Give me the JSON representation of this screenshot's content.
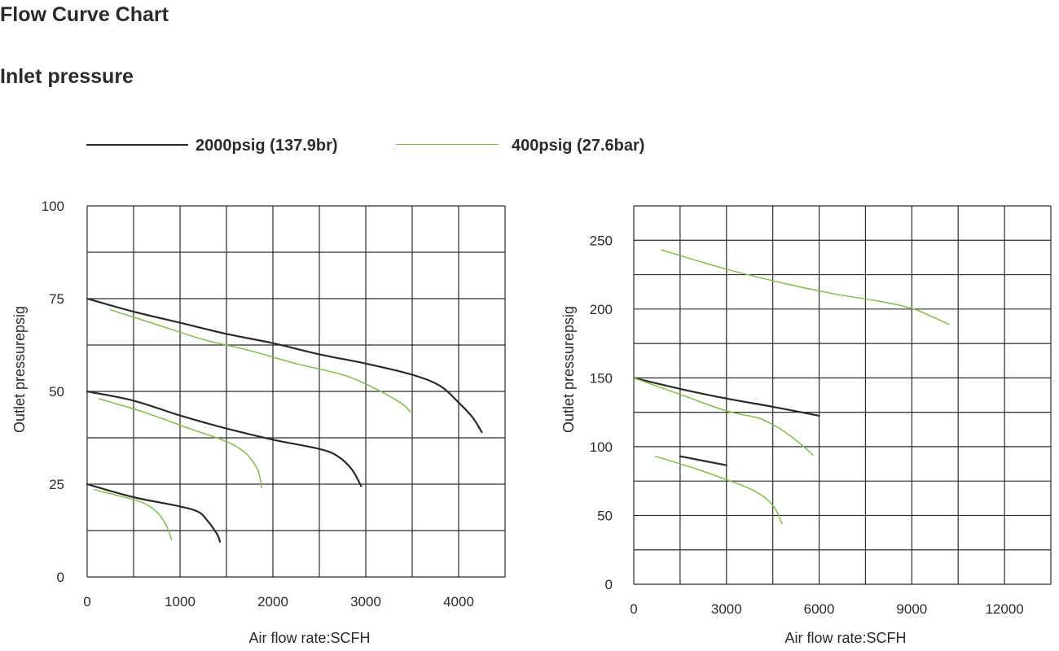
{
  "page": {
    "title": "Flow Curve Chart",
    "subtitle": "Inlet pressure"
  },
  "legend": {
    "items": [
      {
        "label": "2000psig (137.9br)",
        "color": "#2a2a2a"
      },
      {
        "label": "400psig (27.6bar)",
        "color": "#7dc242"
      }
    ]
  },
  "colors": {
    "grid": "#2b2b2b",
    "series_2000": "#2a2a2a",
    "series_400": "#7dc242"
  },
  "chart_data": [
    {
      "type": "line",
      "xlabel": "Air flow rate:SCFH",
      "ylabel": "Outlet pressurepsig",
      "xlim": [
        0,
        4500
      ],
      "ylim": [
        0,
        100
      ],
      "x_ticks": [
        0,
        1000,
        2000,
        3000,
        4000
      ],
      "y_ticks": [
        0,
        25,
        50,
        75,
        100
      ],
      "grid": true,
      "series": [
        {
          "name": "2000psig (137.9br)",
          "color": "#2a2a2a",
          "points": [
            [
              0,
              75
            ],
            [
              500,
              71.5
            ],
            [
              1000,
              68.5
            ],
            [
              1500,
              65.5
            ],
            [
              2000,
              63
            ],
            [
              2500,
              60
            ],
            [
              3000,
              57.5
            ],
            [
              3500,
              54.5
            ],
            [
              3800,
              51.5
            ],
            [
              4000,
              47
            ],
            [
              4150,
              43
            ],
            [
              4250,
              39
            ]
          ]
        },
        {
          "name": "2000psig (137.9br)",
          "color": "#2a2a2a",
          "points": [
            [
              0,
              50
            ],
            [
              500,
              47.5
            ],
            [
              1000,
              43.5
            ],
            [
              1500,
              40
            ],
            [
              2000,
              37
            ],
            [
              2500,
              34.5
            ],
            [
              2700,
              32.5
            ],
            [
              2850,
              29
            ],
            [
              2950,
              24.5
            ]
          ]
        },
        {
          "name": "2000psig (137.9br)",
          "color": "#2a2a2a",
          "points": [
            [
              0,
              25
            ],
            [
              500,
              21.5
            ],
            [
              1000,
              19
            ],
            [
              1200,
              17.5
            ],
            [
              1300,
              15
            ],
            [
              1400,
              11.5
            ],
            [
              1430,
              9.5
            ]
          ]
        },
        {
          "name": "400psig (27.6bar)",
          "color": "#7dc242",
          "points": [
            [
              250,
              72
            ],
            [
              750,
              68
            ],
            [
              1250,
              64
            ],
            [
              1750,
              61
            ],
            [
              2250,
              57.5
            ],
            [
              2750,
              54.5
            ],
            [
              3000,
              52
            ],
            [
              3200,
              49.5
            ],
            [
              3400,
              46.5
            ],
            [
              3480,
              44.5
            ]
          ]
        },
        {
          "name": "400psig (27.6bar)",
          "color": "#7dc242",
          "points": [
            [
              130,
              48
            ],
            [
              600,
              44.5
            ],
            [
              1100,
              40
            ],
            [
              1500,
              36.5
            ],
            [
              1700,
              33.5
            ],
            [
              1800,
              30.5
            ],
            [
              1850,
              28
            ],
            [
              1880,
              24
            ]
          ]
        },
        {
          "name": "400psig (27.6bar)",
          "color": "#7dc242",
          "points": [
            [
              80,
              23.5
            ],
            [
              400,
              21.5
            ],
            [
              600,
              20
            ],
            [
              750,
              17.5
            ],
            [
              850,
              14
            ],
            [
              910,
              10
            ]
          ]
        }
      ]
    },
    {
      "type": "line",
      "xlabel": "Air flow rate:SCFH",
      "ylabel": "Outlet pressurepsig",
      "xlim": [
        0,
        13500
      ],
      "ylim": [
        0,
        275
      ],
      "x_ticks": [
        0,
        3000,
        6000,
        9000,
        12000
      ],
      "y_ticks": [
        0,
        50,
        100,
        150,
        200,
        250
      ],
      "grid": true,
      "series": [
        {
          "name": "2000psig (137.9br)",
          "color": "#2a2a2a",
          "points": [
            [
              0,
              150
            ],
            [
              1500,
              142
            ],
            [
              3000,
              135
            ],
            [
              4500,
              129
            ],
            [
              6000,
              122.5
            ]
          ]
        },
        {
          "name": "2000psig (137.9br)",
          "color": "#2a2a2a",
          "points": [
            [
              1500,
              93
            ],
            [
              3000,
              86.5
            ]
          ]
        },
        {
          "name": "400psig (27.6bar)",
          "color": "#7dc242",
          "points": [
            [
              900,
              243
            ],
            [
              3000,
              229
            ],
            [
              5000,
              218
            ],
            [
              6500,
              211
            ],
            [
              8000,
              205.5
            ],
            [
              9000,
              200.5
            ],
            [
              9600,
              195
            ],
            [
              10200,
              189
            ]
          ]
        },
        {
          "name": "400psig (27.6bar)",
          "color": "#7dc242",
          "points": [
            [
              0,
              150
            ],
            [
              1500,
              138
            ],
            [
              3000,
              126
            ],
            [
              4000,
              121
            ],
            [
              4500,
              116
            ],
            [
              5000,
              109
            ],
            [
              5400,
              102
            ],
            [
              5800,
              94
            ]
          ]
        },
        {
          "name": "400psig (27.6bar)",
          "color": "#7dc242",
          "points": [
            [
              700,
              93
            ],
            [
              2000,
              84
            ],
            [
              3000,
              76
            ],
            [
              3800,
              69
            ],
            [
              4300,
              62
            ],
            [
              4600,
              54
            ],
            [
              4800,
              44
            ]
          ]
        }
      ]
    }
  ]
}
